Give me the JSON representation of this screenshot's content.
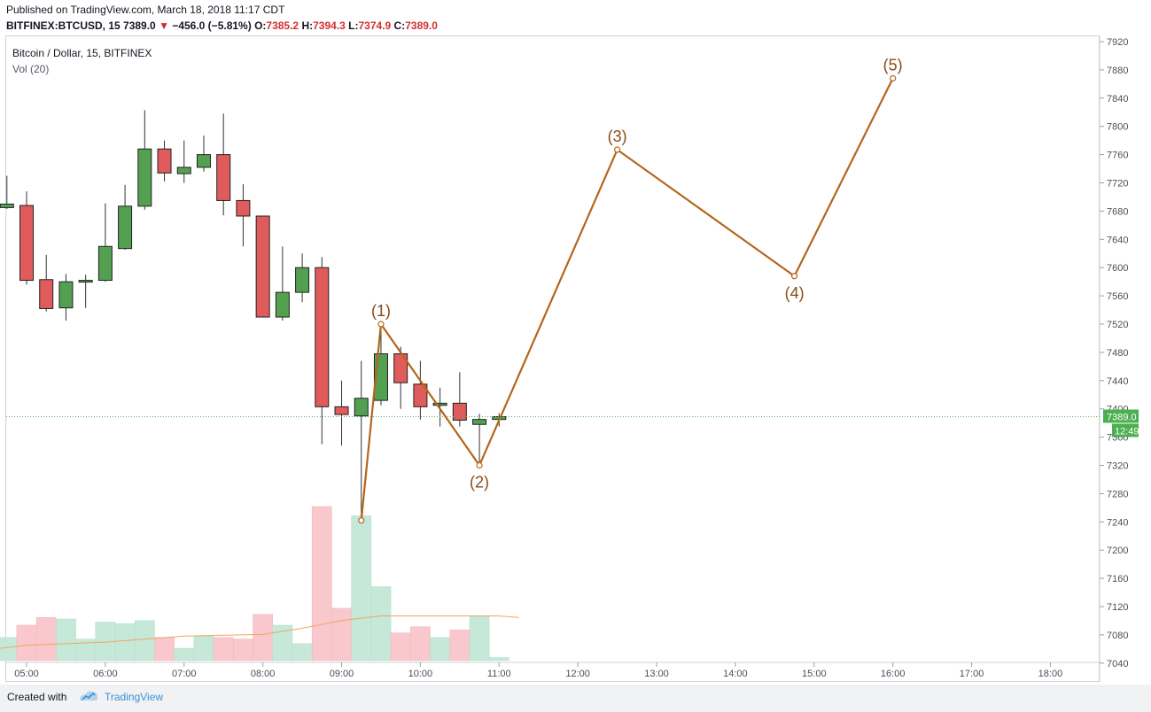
{
  "header": {
    "published": "Published on TradingView.com, March 18, 2018 11:17 CDT",
    "symbol": "BITFINEX:BTCUSD, 15",
    "last": "7389.0",
    "change": "−456.0 (−5.81%)",
    "o_label": "O:",
    "o_value": "7385.2",
    "h_label": "H:",
    "h_value": "7394.3",
    "l_label": "L:",
    "l_value": "7374.9",
    "c_label": "C:",
    "c_value": "7389.0"
  },
  "legend": {
    "title": "Bitcoin / Dollar, 15, BITFINEX",
    "volume": "Vol (20)"
  },
  "footer": {
    "created_with": "Created with",
    "brand": "TradingView"
  },
  "colors": {
    "up": "#53a051",
    "down": "#e05b5b",
    "wave": "#b5651d",
    "vol_up": "#c6e8d9",
    "vol_down": "#f9c8cd",
    "vol_ma": "#f4a460",
    "price_line": "#4caf50"
  },
  "chart_data": {
    "type": "candlestick",
    "title": "Bitcoin / Dollar, 15, BITFINEX",
    "y_ticks": [
      7040,
      7080,
      7120,
      7160,
      7200,
      7240,
      7280,
      7320,
      7360,
      7400,
      7440,
      7480,
      7520,
      7560,
      7600,
      7640,
      7680,
      7720,
      7760,
      7800,
      7840,
      7880,
      7920
    ],
    "x_ticks": [
      "05:00",
      "06:00",
      "07:00",
      "08:00",
      "09:00",
      "10:00",
      "11:00",
      "12:00",
      "13:00",
      "14:00",
      "15:00",
      "16:00",
      "17:00",
      "18:00"
    ],
    "last_price": {
      "label": "7389.0",
      "value": 7389.0
    },
    "countdown": "12:49",
    "candles": [
      {
        "t": "04:30",
        "o": 7685,
        "h": 7695,
        "l": 7655,
        "c": 7693
      },
      {
        "t": "04:45",
        "o": 7685,
        "h": 7730,
        "l": 7683,
        "c": 7690
      },
      {
        "t": "05:00",
        "o": 7688,
        "h": 7708,
        "l": 7576,
        "c": 7582
      },
      {
        "t": "05:15",
        "o": 7583,
        "h": 7618,
        "l": 7538,
        "c": 7542
      },
      {
        "t": "05:30",
        "o": 7543,
        "h": 7591,
        "l": 7525,
        "c": 7580
      },
      {
        "t": "05:45",
        "o": 7580,
        "h": 7590,
        "l": 7543,
        "c": 7582
      },
      {
        "t": "06:00",
        "o": 7582,
        "h": 7691,
        "l": 7580,
        "c": 7630
      },
      {
        "t": "06:15",
        "o": 7627,
        "h": 7717,
        "l": 7625,
        "c": 7687
      },
      {
        "t": "06:30",
        "o": 7687,
        "h": 7823,
        "l": 7682,
        "c": 7768
      },
      {
        "t": "06:45",
        "o": 7768,
        "h": 7780,
        "l": 7722,
        "c": 7734
      },
      {
        "t": "07:00",
        "o": 7733,
        "h": 7780,
        "l": 7720,
        "c": 7742
      },
      {
        "t": "07:15",
        "o": 7742,
        "h": 7787,
        "l": 7736,
        "c": 7760
      },
      {
        "t": "07:30",
        "o": 7760,
        "h": 7818,
        "l": 7674,
        "c": 7695
      },
      {
        "t": "07:45",
        "o": 7695,
        "h": 7718,
        "l": 7630,
        "c": 7673
      },
      {
        "t": "08:00",
        "o": 7673,
        "h": 7673,
        "l": 7530,
        "c": 7530
      },
      {
        "t": "08:15",
        "o": 7530,
        "h": 7630,
        "l": 7525,
        "c": 7565
      },
      {
        "t": "08:30",
        "o": 7565,
        "h": 7620,
        "l": 7551,
        "c": 7600
      },
      {
        "t": "08:45",
        "o": 7600,
        "h": 7615,
        "l": 7350,
        "c": 7403
      },
      {
        "t": "09:00",
        "o": 7403,
        "h": 7440,
        "l": 7348,
        "c": 7392
      },
      {
        "t": "09:15",
        "o": 7390,
        "h": 7468,
        "l": 7242,
        "c": 7415
      },
      {
        "t": "09:30",
        "o": 7412,
        "h": 7520,
        "l": 7405,
        "c": 7478
      },
      {
        "t": "09:45",
        "o": 7478,
        "h": 7488,
        "l": 7400,
        "c": 7437
      },
      {
        "t": "10:00",
        "o": 7435,
        "h": 7468,
        "l": 7385,
        "c": 7403
      },
      {
        "t": "10:15",
        "o": 7405,
        "h": 7430,
        "l": 7375,
        "c": 7408
      },
      {
        "t": "10:30",
        "o": 7408,
        "h": 7452,
        "l": 7375,
        "c": 7384
      },
      {
        "t": "10:45",
        "o": 7378,
        "h": 7393,
        "l": 7320,
        "c": 7385
      },
      {
        "t": "11:00",
        "o": 7385,
        "h": 7394,
        "l": 7375,
        "c": 7389
      }
    ],
    "volume_scale_max": 100,
    "volume": [
      {
        "t": "04:30",
        "v": 10,
        "dir": "up"
      },
      {
        "t": "04:45",
        "v": 15,
        "dir": "up"
      },
      {
        "t": "05:00",
        "v": 23,
        "dir": "down"
      },
      {
        "t": "05:15",
        "v": 28,
        "dir": "down"
      },
      {
        "t": "05:30",
        "v": 27,
        "dir": "up"
      },
      {
        "t": "05:45",
        "v": 14,
        "dir": "up"
      },
      {
        "t": "06:00",
        "v": 25,
        "dir": "up"
      },
      {
        "t": "06:15",
        "v": 24,
        "dir": "up"
      },
      {
        "t": "06:30",
        "v": 26,
        "dir": "up"
      },
      {
        "t": "06:45",
        "v": 15,
        "dir": "down"
      },
      {
        "t": "07:00",
        "v": 8,
        "dir": "up"
      },
      {
        "t": "07:15",
        "v": 16,
        "dir": "up"
      },
      {
        "t": "07:30",
        "v": 15,
        "dir": "down"
      },
      {
        "t": "07:45",
        "v": 14,
        "dir": "down"
      },
      {
        "t": "08:00",
        "v": 30,
        "dir": "down"
      },
      {
        "t": "08:15",
        "v": 23,
        "dir": "up"
      },
      {
        "t": "08:30",
        "v": 11,
        "dir": "up"
      },
      {
        "t": "08:45",
        "v": 100,
        "dir": "down"
      },
      {
        "t": "09:00",
        "v": 34,
        "dir": "down"
      },
      {
        "t": "09:15",
        "v": 94,
        "dir": "up"
      },
      {
        "t": "09:30",
        "v": 48,
        "dir": "up"
      },
      {
        "t": "09:45",
        "v": 18,
        "dir": "down"
      },
      {
        "t": "10:00",
        "v": 22,
        "dir": "down"
      },
      {
        "t": "10:15",
        "v": 15,
        "dir": "up"
      },
      {
        "t": "10:30",
        "v": 20,
        "dir": "down"
      },
      {
        "t": "10:45",
        "v": 29,
        "dir": "up"
      },
      {
        "t": "11:00",
        "v": 2,
        "dir": "up"
      }
    ],
    "volume_ma": [
      {
        "t": "04:30",
        "v": 7
      },
      {
        "t": "05:00",
        "v": 10
      },
      {
        "t": "06:00",
        "v": 12
      },
      {
        "t": "07:00",
        "v": 16
      },
      {
        "t": "08:00",
        "v": 17
      },
      {
        "t": "08:30",
        "v": 21
      },
      {
        "t": "09:00",
        "v": 26
      },
      {
        "t": "09:30",
        "v": 29
      },
      {
        "t": "10:00",
        "v": 29
      },
      {
        "t": "10:30",
        "v": 29
      },
      {
        "t": "11:00",
        "v": 29
      },
      {
        "t": "11:15",
        "v": 28
      }
    ],
    "waves": [
      {
        "label": "",
        "t": "09:15",
        "price": 7242
      },
      {
        "label": "(1)",
        "t": "09:30",
        "price": 7520
      },
      {
        "label": "(2)",
        "t": "10:45",
        "price": 7320
      },
      {
        "label": "(3)",
        "t": "12:30",
        "price": 7767
      },
      {
        "label": "(4)",
        "t": "14:45",
        "price": 7588
      },
      {
        "label": "(5)",
        "t": "16:00",
        "price": 7868
      }
    ]
  }
}
